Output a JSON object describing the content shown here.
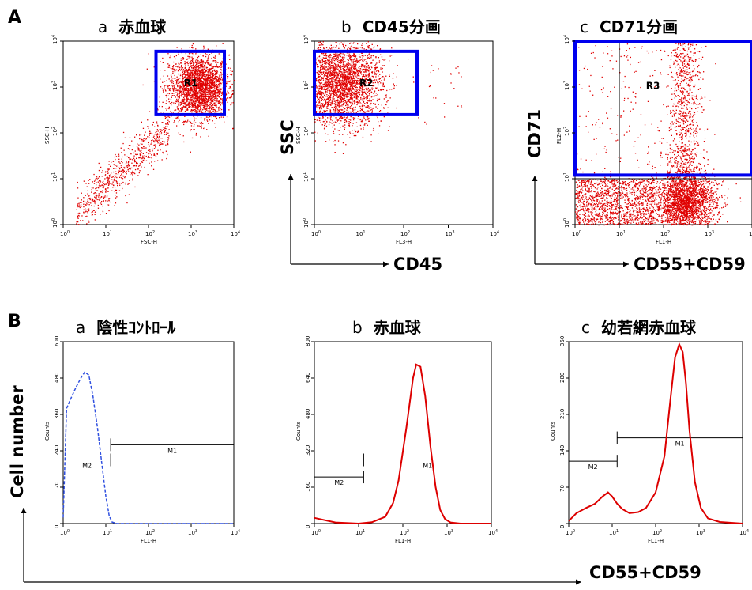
{
  "section_labels": [
    "A",
    "B"
  ],
  "panel_titles": {
    "A_a": {
      "letter": "a",
      "text": "赤血球"
    },
    "A_b": {
      "letter": "b",
      "text": "CD45分画"
    },
    "A_c": {
      "letter": "c",
      "text": "CD71分画"
    },
    "B_a": {
      "letter": "a",
      "text": "陰性ｺﾝﾄﾛｰﾙ"
    },
    "B_b": {
      "letter": "b",
      "text": "赤血球"
    },
    "B_c": {
      "letter": "c",
      "text": "幼若網赤血球"
    }
  },
  "outer_labels": {
    "ssc": "SSC",
    "cd45": "CD45",
    "cd71": "CD71",
    "cd55_cd59_top": "CD55+CD59",
    "cell_number": "Cell number",
    "cd55_cd59_bottom": "CD55+CD59"
  },
  "colors": {
    "dots": "#e00000",
    "gate": "#0000ee",
    "neg_control": "#3050e0",
    "histogram": "#dd0000"
  },
  "chart_data": [
    {
      "id": "A_a",
      "type": "scatter",
      "xlabel": "FSC-H",
      "ylabel": "SSC-H",
      "x_scale": "log",
      "y_scale": "log",
      "xlim": [
        1,
        10000
      ],
      "ylim": [
        1,
        10000
      ],
      "x_ticks": [
        "10^0",
        "10^1",
        "10^2",
        "10^3",
        "10^4"
      ],
      "y_ticks": [
        "10^0",
        "10^1",
        "10^2",
        "10^3",
        "10^4"
      ],
      "gates": [
        {
          "label": "R1",
          "x": [
            150,
            6000
          ],
          "y": [
            250,
            6000
          ]
        }
      ],
      "populations": [
        {
          "name": "erythrocytes",
          "x_center": 1500,
          "y_center": 1000,
          "spread_decades": 0.35,
          "n": 2600
        },
        {
          "name": "tail",
          "x_range": [
            2,
            300
          ],
          "y_range": [
            1,
            300
          ],
          "n": 700
        }
      ]
    },
    {
      "id": "A_b",
      "type": "scatter",
      "xlabel": "FL3-H",
      "ylabel": "SSC-H",
      "x_scale": "log",
      "y_scale": "log",
      "xlim": [
        1,
        10000
      ],
      "ylim": [
        1,
        10000
      ],
      "x_ticks": [
        "10^0",
        "10^1",
        "10^2",
        "10^3",
        "10^4"
      ],
      "y_ticks": [
        "10^0",
        "10^1",
        "10^2",
        "10^3",
        "10^4"
      ],
      "gates": [
        {
          "label": "R2",
          "x": [
            1,
            200
          ],
          "y": [
            250,
            6000
          ]
        }
      ],
      "populations": [
        {
          "name": "CD45-negative",
          "x_center": 4,
          "y_center": 1200,
          "spread_decades": 0.45,
          "n": 2800
        },
        {
          "name": "scattered",
          "x_range": [
            200,
            2000
          ],
          "y_range": [
            150,
            3000
          ],
          "n": 25
        }
      ]
    },
    {
      "id": "A_c",
      "type": "scatter",
      "xlabel": "FL1-H",
      "ylabel": "FL2-H",
      "x_scale": "log",
      "y_scale": "log",
      "xlim": [
        1,
        10000
      ],
      "ylim": [
        1,
        10000
      ],
      "x_ticks": [
        "10^0",
        "10^1",
        "10^2",
        "10^3",
        "10^4"
      ],
      "y_ticks": [
        "10^0",
        "10^1",
        "10^2",
        "10^3",
        "10^4"
      ],
      "quadrant": {
        "x": 10,
        "y": 10
      },
      "gates": [
        {
          "label": "R3",
          "x": [
            1,
            10000
          ],
          "y": [
            12,
            10000
          ]
        }
      ],
      "populations": [
        {
          "name": "CD71-neg main",
          "x_center": 300,
          "y_center": 3,
          "spread_decades": 0.35,
          "n": 2600
        },
        {
          "name": "CD71-neg left",
          "x_range": [
            1,
            60
          ],
          "y_range": [
            1,
            10
          ],
          "n": 1300
        },
        {
          "name": "CD71-pos stripe",
          "x_center": 300,
          "y_range": [
            10,
            10000
          ],
          "n": 800
        },
        {
          "name": "CD71-pos sparse",
          "x_range": [
            1,
            100
          ],
          "y_range": [
            10,
            10000
          ],
          "n": 180
        }
      ]
    },
    {
      "id": "B_a",
      "type": "line",
      "xlabel": "FL1-H",
      "ylabel": "Counts",
      "x_scale": "log",
      "xlim": [
        1,
        10000
      ],
      "ylim": [
        0,
        600
      ],
      "y_ticks": [
        0,
        120,
        240,
        360,
        480,
        600
      ],
      "x_ticks": [
        "10^0",
        "10^1",
        "10^2",
        "10^3",
        "10^4"
      ],
      "markers": [
        {
          "label": "M2",
          "x": [
            1,
            13
          ],
          "y": 210
        },
        {
          "label": "M1",
          "x": [
            13,
            10000
          ],
          "y": 260
        }
      ],
      "series": [
        {
          "x": [
            1,
            1.2,
            1.6,
            2.0,
            2.6,
            3.2,
            4.0,
            5.0,
            6.3,
            8.0,
            10,
            12,
            14,
            18,
            30,
            100,
            10000
          ],
          "y": [
            20,
            380,
            420,
            450,
            480,
            500,
            490,
            420,
            320,
            200,
            90,
            25,
            5,
            0,
            0,
            0,
            0
          ]
        }
      ]
    },
    {
      "id": "B_b",
      "type": "line",
      "xlabel": "FL1-H",
      "ylabel": "Counts",
      "x_scale": "log",
      "xlim": [
        1,
        10000
      ],
      "ylim": [
        0,
        800
      ],
      "y_ticks": [
        0,
        160,
        320,
        480,
        640,
        800
      ],
      "x_ticks": [
        "10^0",
        "10^1",
        "10^2",
        "10^3",
        "10^4"
      ],
      "markers": [
        {
          "label": "M2",
          "x": [
            1,
            13
          ],
          "y": 205
        },
        {
          "label": "M1",
          "x": [
            13,
            10000
          ],
          "y": 280
        }
      ],
      "series": [
        {
          "x": [
            1,
            3,
            10,
            20,
            40,
            60,
            80,
            120,
            170,
            200,
            250,
            320,
            420,
            550,
            700,
            900,
            1200,
            2000,
            10000
          ],
          "y": [
            25,
            5,
            0,
            6,
            30,
            90,
            190,
            420,
            640,
            700,
            690,
            560,
            340,
            160,
            60,
            20,
            5,
            0,
            0
          ]
        }
      ]
    },
    {
      "id": "B_c",
      "type": "line",
      "xlabel": "FL1-H",
      "ylabel": "Counts",
      "x_scale": "log",
      "xlim": [
        1,
        10000
      ],
      "ylim": [
        0,
        350
      ],
      "y_ticks": [
        0,
        70,
        140,
        210,
        280,
        350
      ],
      "x_ticks": [
        "10^0",
        "10^1",
        "10^2",
        "10^3",
        "10^4"
      ],
      "markers": [
        {
          "label": "M2",
          "x": [
            1,
            13
          ],
          "y": 120
        },
        {
          "label": "M1",
          "x": [
            13,
            10000
          ],
          "y": 165
        }
      ],
      "series": [
        {
          "x": [
            1,
            1.5,
            2.5,
            4,
            6,
            8,
            10,
            13,
            17,
            25,
            40,
            60,
            100,
            160,
            220,
            280,
            350,
            420,
            500,
            600,
            800,
            1100,
            1600,
            3000,
            10000
          ],
          "y": [
            5,
            20,
            30,
            38,
            52,
            60,
            52,
            38,
            28,
            20,
            22,
            30,
            60,
            130,
            240,
            320,
            345,
            330,
            270,
            180,
            80,
            30,
            10,
            3,
            0
          ]
        }
      ]
    }
  ]
}
